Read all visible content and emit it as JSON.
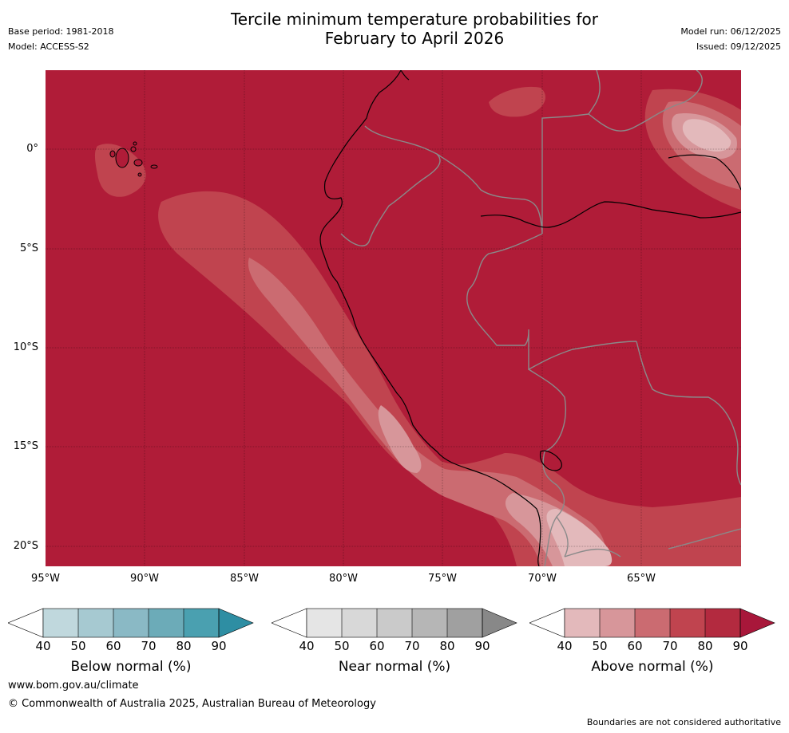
{
  "header": {
    "title_line1": "Tercile minimum temperature probabilities for",
    "title_line2": "February to April 2026",
    "base_period": "Base period: 1981-2018",
    "model": "Model: ACCESS-S2",
    "model_run": "Model run: 06/12/2025",
    "issued": "Issued: 09/12/2025"
  },
  "map": {
    "latitude_labels": [
      "0°",
      "5°S",
      "10°S",
      "15°S",
      "20°S"
    ],
    "longitude_labels": [
      "95°W",
      "90°W",
      "85°W",
      "80°W",
      "75°W",
      "70°W",
      "65°W"
    ],
    "colors": {
      "above_90": "#b01c38",
      "above_80": "#c0444f",
      "above_70": "#cb6b71",
      "above_60": "#d7969a",
      "above_50": "#e3b9bb",
      "coastline": "#000000",
      "border": "#808080"
    }
  },
  "legends": [
    {
      "title": "Below normal (%)",
      "ticks": [
        "40",
        "50",
        "60",
        "70",
        "80",
        "90"
      ],
      "colors": [
        "#ffffff",
        "#c0d8dd",
        "#a6c9d1",
        "#8ab9c5",
        "#6cabb8",
        "#4aa0b0",
        "#2e8ea3"
      ]
    },
    {
      "title": "Near normal (%)",
      "ticks": [
        "40",
        "50",
        "60",
        "70",
        "80",
        "90"
      ],
      "colors": [
        "#ffffff",
        "#e5e5e5",
        "#d8d8d8",
        "#cacaca",
        "#b6b6b6",
        "#a0a0a0",
        "#888888"
      ]
    },
    {
      "title": "Above normal (%)",
      "ticks": [
        "40",
        "50",
        "60",
        "70",
        "80",
        "90"
      ],
      "colors": [
        "#ffffff",
        "#e3b9bb",
        "#d7969a",
        "#cb6b71",
        "#c0444f",
        "#b32a3f",
        "#a8173a"
      ]
    }
  ],
  "footer": {
    "website": "www.bom.gov.au/climate",
    "copyright": "© Commonwealth of Australia 2025, Australian Bureau of Meteorology",
    "disclaimer": "Boundaries are not considered authoritative"
  }
}
